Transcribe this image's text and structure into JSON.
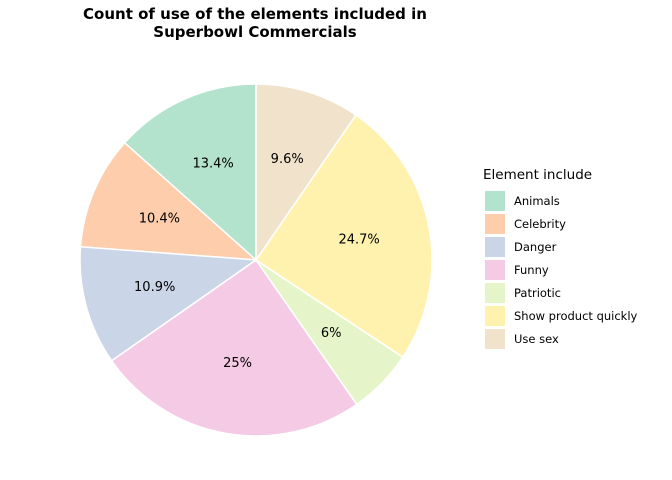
{
  "chart_data": {
    "type": "pie",
    "title_lines": [
      "Count of use of the elements included in",
      "Superbowl Commercials"
    ],
    "legend": {
      "title": "Element include",
      "placement": "right"
    },
    "categories": [
      "Animals",
      "Celebrity",
      "Danger",
      "Funny",
      "Patriotic",
      "Show product quickly",
      "Use sex"
    ],
    "values": [
      13.4,
      10.4,
      10.9,
      25,
      6,
      24.7,
      9.6
    ],
    "labels": [
      "13.4%",
      "10.4%",
      "10.9%",
      "25%",
      "6%",
      "24.7%",
      "9.6%"
    ],
    "colors": [
      "#b3e2cd",
      "#fdcdac",
      "#cbd5e8",
      "#f4cae4",
      "#e6f5c9",
      "#fff2ae",
      "#f1e2cc"
    ],
    "direction": "counterclockwise",
    "start": "top"
  }
}
